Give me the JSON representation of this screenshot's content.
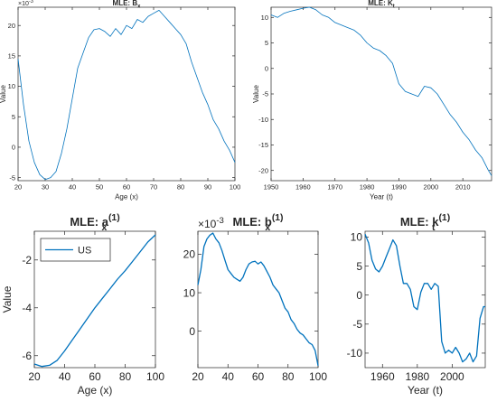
{
  "chart_data": [
    {
      "type": "line",
      "title": "MLE: B",
      "title_sub": "x",
      "xlabel": "Age (x)",
      "ylabel": "Value",
      "exponent_label": "×10",
      "exponent_sup": "-3",
      "xlim": [
        20,
        100
      ],
      "ylim": [
        -5.5,
        23
      ],
      "xticks": [
        20,
        30,
        40,
        50,
        60,
        70,
        80,
        90,
        100
      ],
      "yticks": [
        -5,
        0,
        5,
        10,
        15,
        20
      ],
      "color": "#0072BD",
      "x": [
        20,
        22,
        24,
        26,
        28,
        30,
        32,
        34,
        36,
        38,
        40,
        42,
        44,
        46,
        48,
        50,
        52,
        54,
        56,
        58,
        60,
        62,
        64,
        66,
        68,
        70,
        72,
        74,
        76,
        78,
        80,
        82,
        84,
        86,
        88,
        90,
        92,
        94,
        96,
        98,
        100
      ],
      "y": [
        14.5,
        7,
        1,
        -2.5,
        -4.5,
        -5.3,
        -5,
        -4,
        -1,
        3,
        8,
        13,
        15.5,
        18,
        19.3,
        19.5,
        19,
        18.2,
        19.5,
        18.5,
        20,
        19.5,
        21,
        20.5,
        21.5,
        22,
        22.5,
        21.5,
        20.5,
        19.5,
        18.5,
        17,
        14,
        11.5,
        9,
        7,
        4.5,
        3,
        1,
        -0.5,
        -2.5
      ]
    },
    {
      "type": "line",
      "title": "MLE: K",
      "title_sub": "t",
      "xlabel": "Year (t)",
      "ylabel": "Value",
      "xlim": [
        1950,
        2019
      ],
      "ylim": [
        -22,
        12
      ],
      "xticks": [
        1950,
        1960,
        1970,
        1980,
        1990,
        2000,
        2010
      ],
      "yticks": [
        -20,
        -15,
        -10,
        -5,
        0,
        5,
        10
      ],
      "color": "#0072BD",
      "x": [
        1950,
        1952,
        1954,
        1956,
        1958,
        1960,
        1962,
        1964,
        1966,
        1968,
        1970,
        1972,
        1974,
        1976,
        1978,
        1980,
        1982,
        1984,
        1986,
        1988,
        1990,
        1992,
        1994,
        1996,
        1998,
        2000,
        2002,
        2004,
        2006,
        2008,
        2010,
        2012,
        2014,
        2016,
        2018,
        2019
      ],
      "y": [
        10.5,
        10,
        10.8,
        11.2,
        11.5,
        11.8,
        12,
        11.5,
        10.5,
        10,
        9,
        8.5,
        8,
        7.5,
        6.5,
        5,
        4,
        3.5,
        2.5,
        1,
        -3,
        -4.5,
        -5,
        -5.5,
        -3.5,
        -3.8,
        -5,
        -7,
        -9,
        -10.5,
        -12.5,
        -14,
        -16,
        -17.5,
        -20,
        -21
      ]
    },
    {
      "type": "line",
      "title": "MLE: a",
      "title_sub": "x",
      "title_sup": "(1)",
      "xlabel": "Age (x)",
      "ylabel": "Value",
      "xlim": [
        20,
        100
      ],
      "ylim": [
        -6.5,
        -0.8
      ],
      "xticks": [
        20,
        40,
        60,
        80,
        100
      ],
      "yticks": [
        -6,
        -4,
        -2
      ],
      "legend": [
        "US"
      ],
      "legend_position": "top-left",
      "color": "#0072BD",
      "x": [
        20,
        25,
        30,
        35,
        40,
        45,
        50,
        55,
        60,
        65,
        70,
        75,
        80,
        85,
        90,
        95,
        100
      ],
      "y": [
        -6.35,
        -6.45,
        -6.4,
        -6.2,
        -5.8,
        -5.35,
        -4.9,
        -4.45,
        -4,
        -3.6,
        -3.2,
        -2.8,
        -2.45,
        -2.05,
        -1.65,
        -1.25,
        -0.95
      ]
    },
    {
      "type": "line",
      "title": "MLE: b",
      "title_sub": "x",
      "title_sup": "(1)",
      "exponent_label": "×10",
      "exponent_sup": "-3",
      "xlim": [
        20,
        100
      ],
      "ylim": [
        -9.5,
        26
      ],
      "xticks": [
        20,
        40,
        60,
        80,
        100
      ],
      "yticks": [
        0,
        10,
        20
      ],
      "xlabel": "",
      "ylabel": "",
      "color": "#0072BD",
      "x": [
        20,
        22,
        24,
        26,
        28,
        30,
        32,
        34,
        36,
        38,
        40,
        42,
        44,
        46,
        48,
        50,
        52,
        54,
        56,
        58,
        60,
        62,
        64,
        66,
        68,
        70,
        72,
        74,
        76,
        78,
        80,
        82,
        84,
        86,
        88,
        90,
        92,
        94,
        96,
        98,
        100
      ],
      "y": [
        12,
        16,
        22,
        24,
        25,
        25.5,
        24,
        23,
        21,
        18.5,
        16,
        15,
        14,
        13.5,
        13,
        14,
        16,
        17.5,
        18,
        18.2,
        17.5,
        18,
        17,
        15.5,
        14,
        12,
        11,
        10,
        8,
        6,
        5,
        3,
        2,
        0.5,
        -0.5,
        -1,
        -2,
        -3,
        -3.5,
        -5,
        -9
      ]
    },
    {
      "type": "line",
      "title": "MLE: k",
      "title_sub": "t",
      "title_sup": "(1)",
      "xlabel": "Year (t)",
      "ylabel": "",
      "xlim": [
        1950,
        2019
      ],
      "ylim": [
        -12.5,
        11
      ],
      "xticks": [
        1960,
        1980,
        2000
      ],
      "yticks": [
        -10,
        -5,
        0,
        5,
        10
      ],
      "color": "#0072BD",
      "x": [
        1950,
        1952,
        1954,
        1956,
        1958,
        1960,
        1962,
        1964,
        1966,
        1968,
        1970,
        1972,
        1974,
        1976,
        1978,
        1980,
        1982,
        1984,
        1986,
        1988,
        1990,
        1992,
        1994,
        1996,
        1998,
        2000,
        2002,
        2004,
        2006,
        2008,
        2010,
        2012,
        2014,
        2016,
        2018,
        2019
      ],
      "y": [
        10.5,
        9,
        6,
        4.5,
        4,
        5,
        6.5,
        8,
        9.5,
        8.5,
        5,
        2,
        2,
        1,
        -2,
        -2.5,
        0.5,
        2,
        2,
        1,
        2,
        1.5,
        -8,
        -10,
        -9.5,
        -10,
        -9,
        -10,
        -11.5,
        -11,
        -10,
        -11.5,
        -10.5,
        -4,
        -2,
        -2
      ]
    }
  ]
}
